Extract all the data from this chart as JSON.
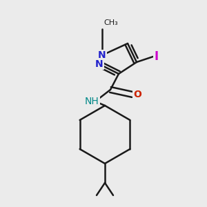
{
  "background_color": "#ebebeb",
  "bond_color": "#1a1a1a",
  "bond_width": 1.8,
  "figsize": [
    3.0,
    3.0
  ],
  "dpi": 100,
  "N1_color": "#2222cc",
  "N2_color": "#2222cc",
  "NH_color": "#008888",
  "O_color": "#cc2200",
  "I_color": "#cc00cc",
  "methyl_label": "CH₃",
  "N_label": "N",
  "NH_label": "NH",
  "O_label": "O",
  "I_label": "I"
}
